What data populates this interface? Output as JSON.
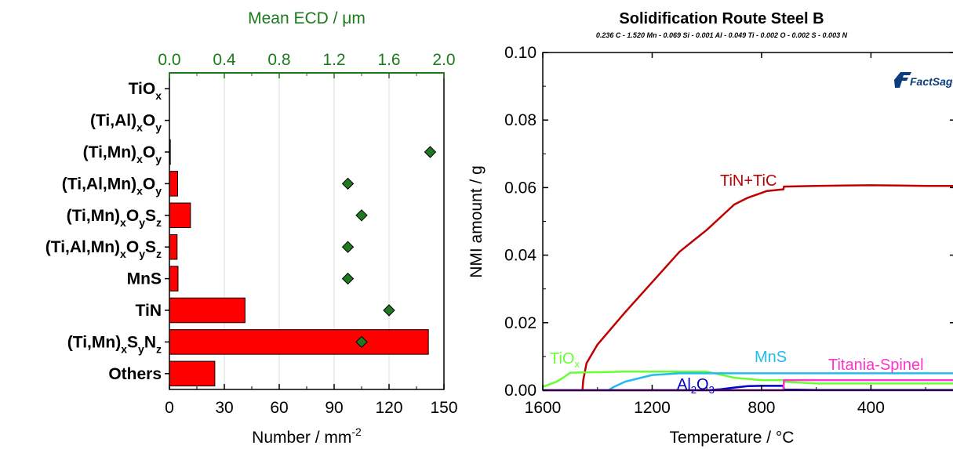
{
  "chart_data": [
    {
      "type": "bar",
      "orientation": "horizontal",
      "categories": [
        {
          "base": "TiO",
          "parts": [
            [
              "x",
              "sub"
            ]
          ]
        },
        {
          "base": "(Ti,Al)",
          "parts": [
            [
              "x",
              "sub"
            ],
            [
              "O",
              "base"
            ],
            [
              "y",
              "sub"
            ]
          ]
        },
        {
          "base": "(Ti,Mn)",
          "parts": [
            [
              "x",
              "sub"
            ],
            [
              "O",
              "base"
            ],
            [
              "y",
              "sub"
            ]
          ]
        },
        {
          "base": "(Ti,Al,Mn)",
          "parts": [
            [
              "x",
              "sub"
            ],
            [
              "O",
              "base"
            ],
            [
              "y",
              "sub"
            ]
          ]
        },
        {
          "base": "(Ti,Mn)",
          "parts": [
            [
              "x",
              "sub"
            ],
            [
              "O",
              "base"
            ],
            [
              "y",
              "sub"
            ],
            [
              "S",
              "base"
            ],
            [
              "z",
              "sub"
            ]
          ]
        },
        {
          "base": "(Ti,Al,Mn)",
          "parts": [
            [
              "x",
              "sub"
            ],
            [
              "O",
              "base"
            ],
            [
              "y",
              "sub"
            ],
            [
              "S",
              "base"
            ],
            [
              "z",
              "sub"
            ]
          ]
        },
        {
          "base": "MnS",
          "parts": []
        },
        {
          "base": "TiN",
          "parts": []
        },
        {
          "base": "(Ti,Mn)",
          "parts": [
            [
              "x",
              "sub"
            ],
            [
              "S",
              "base"
            ],
            [
              "y",
              "sub"
            ],
            [
              "N",
              "base"
            ],
            [
              "z",
              "sub"
            ]
          ]
        },
        {
          "base": "Others",
          "parts": []
        }
      ],
      "bar_values": [
        0,
        0,
        0.5,
        4.5,
        11.5,
        4.2,
        4.7,
        41.3,
        141.5,
        24.8
      ],
      "ecd_values": [
        null,
        null,
        1.9,
        1.3,
        1.4,
        1.3,
        1.3,
        1.6,
        1.4,
        null
      ],
      "xlabel": "Number / mm",
      "xlabel_sup": "-2",
      "xlim": [
        0,
        150
      ],
      "xticks": [
        0,
        30,
        60,
        90,
        120,
        150
      ],
      "x2label": "Mean ECD / μm",
      "x2lim": [
        0,
        2.0
      ],
      "x2ticks": [
        "0.0",
        "0.4",
        "0.8",
        "1.2",
        "1.6",
        "2.0"
      ],
      "bar_color": "#ff0000",
      "marker_color": "#1f7a1f",
      "axis_color_top": "#1b7a1b",
      "grid": "vertical-light"
    },
    {
      "type": "line",
      "title": "Solidification Route Steel B",
      "subtitle": "0.236 C - 1.520 Mn - 0.069 Si - 0.001 Al - 0.049 Ti - 0.002 O - 0.002 S - 0.003 N",
      "xlabel": "Temperature / °C",
      "ylabel": "NMI amount / g",
      "xlim": [
        1600,
        100
      ],
      "ylim": [
        0,
        0.1
      ],
      "xticks": [
        1600,
        1200,
        800,
        400
      ],
      "yticks": [
        "0.00",
        "0.02",
        "0.04",
        "0.06",
        "0.08",
        "0.10"
      ],
      "logo": "FactSage",
      "series": [
        {
          "name": "TiN+TiC",
          "color": "#c00000",
          "x": [
            1600,
            1550,
            1455,
            1452,
            1440,
            1400,
            1300,
            1200,
            1100,
            1000,
            900,
            850,
            780,
            720,
            718,
            600,
            500,
            400,
            300,
            200,
            100
          ],
          "y": [
            0,
            0,
            0,
            0.003,
            0.008,
            0.0135,
            0.023,
            0.032,
            0.041,
            0.0475,
            0.055,
            0.057,
            0.059,
            0.0595,
            0.0603,
            0.0605,
            0.0606,
            0.0607,
            0.0606,
            0.0605,
            0.0605
          ]
        },
        {
          "name": "TiO",
          "name_sub": "x",
          "color": "#66ff33",
          "x": [
            1600,
            1550,
            1520,
            1500,
            1300,
            1000,
            960,
            900,
            800,
            720,
            718,
            600,
            400,
            100
          ],
          "y": [
            0.001,
            0.0025,
            0.004,
            0.0052,
            0.0055,
            0.0055,
            0.0048,
            0.0037,
            0.003,
            0.003,
            0.0025,
            0.002,
            0.002,
            0.002
          ]
        },
        {
          "name": "MnS",
          "color": "#22bbee",
          "x": [
            1600,
            1360,
            1340,
            1300,
            1250,
            1200,
            1100,
            1000,
            900,
            800,
            720,
            600,
            400,
            100
          ],
          "y": [
            0,
            0,
            0.001,
            0.0025,
            0.0035,
            0.0045,
            0.005,
            0.005,
            0.005,
            0.005,
            0.005,
            0.005,
            0.005,
            0.005
          ]
        },
        {
          "name": "Al",
          "name_sub": "2",
          "name_mid": "O",
          "name_sub2": "3",
          "color": "#0000cc",
          "x": [
            1600,
            1000,
            950,
            900,
            850,
            800,
            720,
            718,
            600,
            400,
            100
          ],
          "y": [
            0,
            0,
            0.0003,
            0.0008,
            0.0012,
            0.0013,
            0.0013,
            0.0002,
            0.0001,
            0.0001,
            0.0001
          ]
        },
        {
          "name": "Titania-Spinel",
          "color": "#ff33cc",
          "x": [
            1600,
            720,
            718,
            600,
            400,
            100
          ],
          "y": [
            0,
            0,
            0.003,
            0.003,
            0.003,
            0.003
          ]
        },
        {
          "name": "",
          "color": "#9933cc",
          "x": [
            1600,
            100
          ],
          "y": [
            0,
            0
          ]
        }
      ]
    }
  ]
}
